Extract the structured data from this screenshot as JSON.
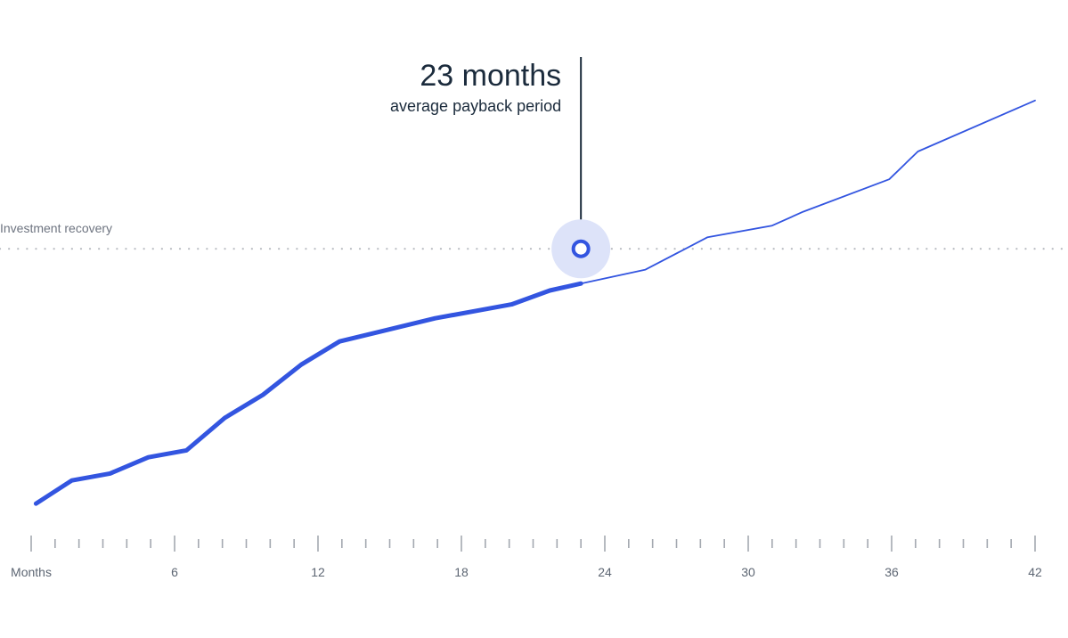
{
  "chart_data": {
    "type": "line",
    "xlabel": "Months",
    "x_ticks": [
      0,
      6,
      12,
      18,
      24,
      30,
      36,
      42
    ],
    "x_tick_labels": [
      "Months",
      "6",
      "12",
      "18",
      "24",
      "30",
      "36",
      "42"
    ],
    "xlim": [
      0,
      42
    ],
    "ylim": [
      0,
      100
    ],
    "y_axis_shown": false,
    "grid": false,
    "reference_line": {
      "label": "Investment recovery",
      "y": 54,
      "style": "dotted"
    },
    "callout": {
      "value": "23 months",
      "description": "average payback period",
      "x": 23
    },
    "series": [
      {
        "x": [
          0.2,
          1.7,
          3.3,
          4.9,
          6.5,
          8.1,
          9.7,
          11.3,
          12.9,
          14.5,
          16.9,
          18.5,
          20.1,
          21.7,
          23,
          25.7,
          28.3,
          31.0,
          32.3,
          35.9,
          37.1,
          42.0
        ],
        "values": [
          -1,
          4,
          5.5,
          9,
          10.5,
          17.5,
          22.5,
          29,
          34,
          36,
          39,
          40.5,
          42,
          45,
          46.5,
          49.5,
          56.5,
          59,
          62,
          69,
          75,
          86
        ],
        "highlight_until_x": 23,
        "color": "#3355e0"
      }
    ],
    "colors": {
      "line": "#3355e0",
      "marker_halo": "#dde3f9",
      "callout": "#1b2b3c",
      "reference": "#b8bbc1",
      "axis": "#a3a8b0"
    }
  }
}
